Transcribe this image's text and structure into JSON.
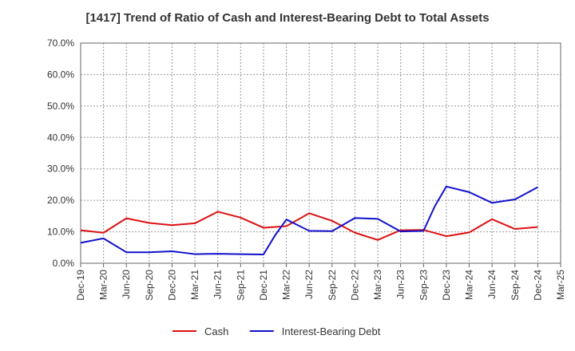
{
  "chart_data": {
    "type": "line",
    "title": "[1417]  Trend of Ratio of Cash and Interest-Bearing Debt to Total Assets",
    "xlabel": "",
    "ylabel": "",
    "ylim": [
      0,
      70
    ],
    "yticks": [
      "0.0%",
      "10.0%",
      "20.0%",
      "30.0%",
      "40.0%",
      "50.0%",
      "60.0%",
      "70.0%"
    ],
    "grid": true,
    "legend_position": "bottom",
    "categories": [
      "Dec-19",
      "Mar-20",
      "Jun-20",
      "Sep-20",
      "Dec-20",
      "Mar-21",
      "Jun-21",
      "Sep-21",
      "Dec-21",
      "Mar-22",
      "Jun-22",
      "Sep-22",
      "Dec-22",
      "Mar-23",
      "Jun-23",
      "Sep-23",
      "Dec-23",
      "Mar-24",
      "Jun-24",
      "Sep-24",
      "Dec-24",
      "Mar-25"
    ],
    "series": [
      {
        "name": "Cash",
        "color": "#dd1111",
        "points": [
          [
            0,
            10.5
          ],
          [
            1,
            9.7
          ],
          [
            2,
            14.3
          ],
          [
            3,
            12.8
          ],
          [
            4,
            12.1
          ],
          [
            5,
            12.7
          ],
          [
            6,
            16.4
          ],
          [
            7,
            14.5
          ],
          [
            8,
            11.3
          ],
          [
            9,
            11.8
          ],
          [
            10,
            15.9
          ],
          [
            11,
            13.5
          ],
          [
            12,
            9.7
          ],
          [
            13,
            7.4
          ],
          [
            14,
            10.5
          ],
          [
            15,
            10.6
          ],
          [
            16,
            8.6
          ],
          [
            17,
            9.8
          ],
          [
            18,
            14.0
          ],
          [
            19,
            10.9
          ],
          [
            20,
            11.5
          ]
        ]
      },
      {
        "name": "Interest-Bearing Debt",
        "color": "#1111cc",
        "points": [
          [
            0,
            6.5
          ],
          [
            1,
            7.9
          ],
          [
            2,
            3.5
          ],
          [
            3,
            3.5
          ],
          [
            4,
            3.8
          ],
          [
            5,
            2.9
          ],
          [
            6,
            3.0
          ],
          [
            7,
            2.9
          ],
          [
            8,
            2.8
          ],
          [
            8.5,
            8.8
          ],
          [
            9,
            13.9
          ],
          [
            10,
            10.3
          ],
          [
            11,
            10.2
          ],
          [
            12,
            14.4
          ],
          [
            13,
            14.1
          ],
          [
            14,
            10.1
          ],
          [
            15,
            10.3
          ],
          [
            15.5,
            18.2
          ],
          [
            16,
            24.4
          ],
          [
            17,
            22.6
          ],
          [
            18,
            19.2
          ],
          [
            19,
            20.3
          ],
          [
            20,
            24.2
          ]
        ]
      }
    ]
  }
}
